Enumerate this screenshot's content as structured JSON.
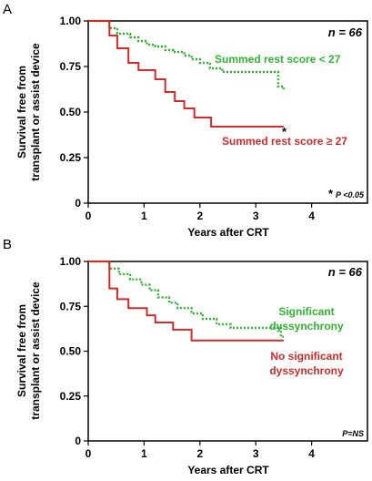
{
  "chart_data": [
    {
      "type": "line",
      "panel_label": "A",
      "n_label": "n = 66",
      "title": "",
      "xlabel": "Years after CRT",
      "ylabel_lines": [
        "Survival free from",
        "transplant or assist device"
      ],
      "xlim": [
        0,
        5
      ],
      "ylim": [
        0,
        1
      ],
      "xticks": [
        0,
        1,
        2,
        3,
        4
      ],
      "yticks": [
        {
          "v": 0,
          "label": "0"
        },
        {
          "v": 0.25,
          "label": "0.25"
        },
        {
          "v": 0.5,
          "label": "0.50"
        },
        {
          "v": 0.75,
          "label": "0.75"
        },
        {
          "v": 1,
          "label": "1.00"
        }
      ],
      "grid": false,
      "annotation_star": "*",
      "footnote": {
        "star": "*",
        "text": "P <0.05"
      },
      "series": [
        {
          "name": "Summed rest score < 27",
          "color": "#2fb52f",
          "style": "dotted",
          "steps": [
            [
              0,
              1
            ],
            [
              0.38,
              1
            ],
            [
              0.38,
              0.96
            ],
            [
              0.52,
              0.96
            ],
            [
              0.52,
              0.93
            ],
            [
              0.75,
              0.93
            ],
            [
              0.75,
              0.91
            ],
            [
              0.9,
              0.91
            ],
            [
              0.9,
              0.89
            ],
            [
              1.05,
              0.89
            ],
            [
              1.05,
              0.87
            ],
            [
              1.2,
              0.87
            ],
            [
              1.2,
              0.86
            ],
            [
              1.38,
              0.86
            ],
            [
              1.38,
              0.84
            ],
            [
              1.52,
              0.84
            ],
            [
              1.52,
              0.83
            ],
            [
              1.72,
              0.83
            ],
            [
              1.72,
              0.81
            ],
            [
              1.85,
              0.81
            ],
            [
              1.85,
              0.79
            ],
            [
              2.0,
              0.79
            ],
            [
              2.0,
              0.77
            ],
            [
              2.18,
              0.77
            ],
            [
              2.18,
              0.74
            ],
            [
              2.4,
              0.74
            ],
            [
              2.4,
              0.72
            ],
            [
              3.4,
              0.72
            ],
            [
              3.4,
              0.64
            ],
            [
              3.5,
              0.64
            ],
            [
              3.5,
              0.62
            ]
          ]
        },
        {
          "name": "Summed rest score ≥ 27",
          "color": "#d42a2a",
          "style": "solid",
          "steps": [
            [
              0,
              1
            ],
            [
              0.38,
              1
            ],
            [
              0.38,
              0.92
            ],
            [
              0.52,
              0.92
            ],
            [
              0.52,
              0.85
            ],
            [
              0.72,
              0.85
            ],
            [
              0.72,
              0.77
            ],
            [
              0.9,
              0.77
            ],
            [
              0.9,
              0.73
            ],
            [
              1.2,
              0.73
            ],
            [
              1.2,
              0.68
            ],
            [
              1.38,
              0.68
            ],
            [
              1.38,
              0.61
            ],
            [
              1.55,
              0.61
            ],
            [
              1.55,
              0.56
            ],
            [
              1.72,
              0.56
            ],
            [
              1.72,
              0.52
            ],
            [
              1.9,
              0.52
            ],
            [
              1.9,
              0.47
            ],
            [
              2.2,
              0.47
            ],
            [
              2.2,
              0.42
            ],
            [
              3.5,
              0.42
            ]
          ]
        }
      ]
    },
    {
      "type": "line",
      "panel_label": "B",
      "n_label": "n = 66",
      "title": "",
      "xlabel": "Years after CRT",
      "ylabel_lines": [
        "Survival free from",
        "transplant or assist device"
      ],
      "xlim": [
        0,
        5
      ],
      "ylim": [
        0,
        1
      ],
      "xticks": [
        0,
        1,
        2,
        3,
        4
      ],
      "yticks": [
        {
          "v": 0,
          "label": "0"
        },
        {
          "v": 0.25,
          "label": "0.25"
        },
        {
          "v": 0.5,
          "label": "0.50"
        },
        {
          "v": 0.75,
          "label": "0.75"
        },
        {
          "v": 1,
          "label": "1.00"
        }
      ],
      "grid": false,
      "footnote": {
        "star": "",
        "text": "P=NS"
      },
      "series": [
        {
          "name": "Significant dyssynchrony",
          "label_lines": [
            "Significant",
            "dyssynchrony"
          ],
          "color": "#2fb52f",
          "style": "dotted",
          "steps": [
            [
              0,
              1
            ],
            [
              0.38,
              1
            ],
            [
              0.38,
              0.96
            ],
            [
              0.55,
              0.96
            ],
            [
              0.55,
              0.93
            ],
            [
              0.75,
              0.93
            ],
            [
              0.75,
              0.9
            ],
            [
              0.95,
              0.9
            ],
            [
              0.95,
              0.87
            ],
            [
              1.1,
              0.87
            ],
            [
              1.1,
              0.84
            ],
            [
              1.25,
              0.84
            ],
            [
              1.25,
              0.8
            ],
            [
              1.45,
              0.8
            ],
            [
              1.45,
              0.77
            ],
            [
              1.6,
              0.77
            ],
            [
              1.6,
              0.74
            ],
            [
              1.85,
              0.74
            ],
            [
              1.85,
              0.71
            ],
            [
              2.05,
              0.71
            ],
            [
              2.05,
              0.68
            ],
            [
              2.3,
              0.68
            ],
            [
              2.3,
              0.65
            ],
            [
              2.55,
              0.65
            ],
            [
              2.55,
              0.63
            ],
            [
              3.45,
              0.63
            ],
            [
              3.45,
              0.58
            ],
            [
              3.5,
              0.58
            ]
          ]
        },
        {
          "name": "No significant dyssynchrony",
          "label_lines": [
            "No significant",
            "dyssynchrony"
          ],
          "color": "#d42a2a",
          "style": "solid",
          "steps": [
            [
              0,
              1
            ],
            [
              0.38,
              1
            ],
            [
              0.38,
              0.85
            ],
            [
              0.52,
              0.85
            ],
            [
              0.52,
              0.79
            ],
            [
              0.72,
              0.79
            ],
            [
              0.72,
              0.74
            ],
            [
              1.05,
              0.74
            ],
            [
              1.05,
              0.7
            ],
            [
              1.2,
              0.7
            ],
            [
              1.2,
              0.66
            ],
            [
              1.52,
              0.66
            ],
            [
              1.52,
              0.62
            ],
            [
              1.85,
              0.62
            ],
            [
              1.85,
              0.56
            ],
            [
              3.5,
              0.56
            ]
          ]
        }
      ]
    }
  ]
}
